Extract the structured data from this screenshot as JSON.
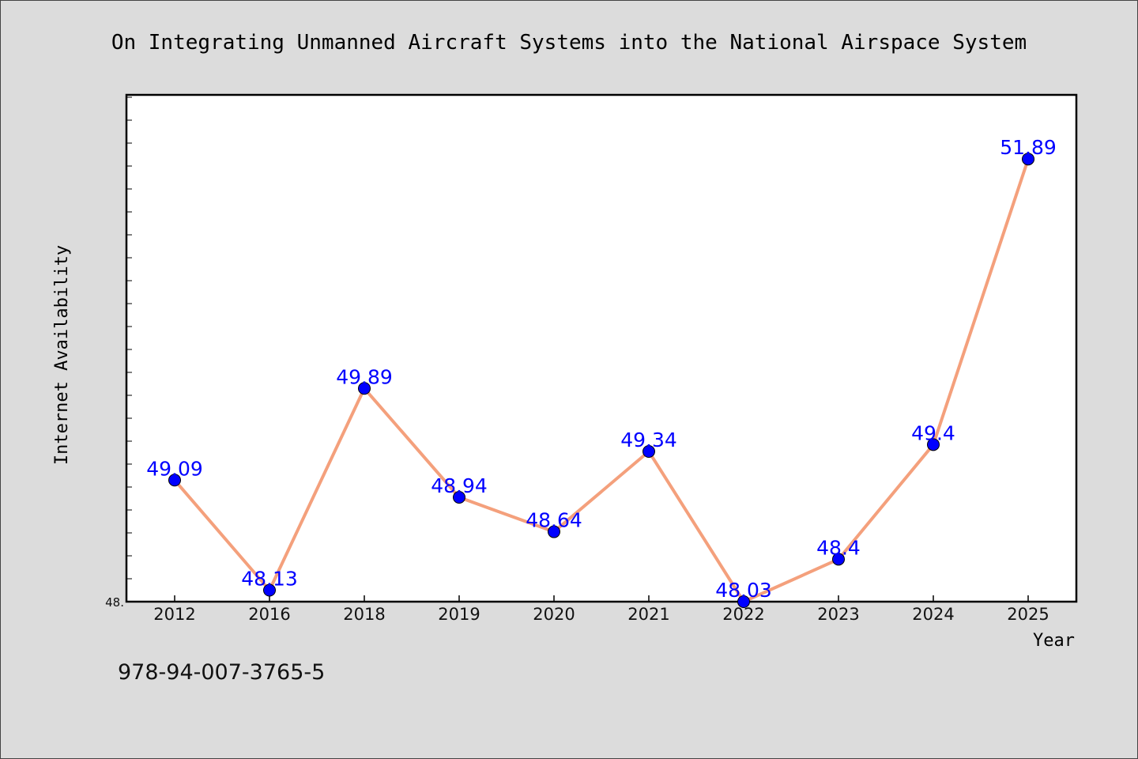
{
  "chart_data": {
    "type": "line",
    "title": "On Integrating Unmanned Aircraft Systems into the National Airspace System",
    "xlabel": "Year",
    "ylabel": "Internet Availability",
    "categories": [
      "2012",
      "2016",
      "2018",
      "2019",
      "2020",
      "2021",
      "2022",
      "2023",
      "2024",
      "2025"
    ],
    "series": [
      {
        "values": [
          49.09,
          48.13,
          49.89,
          48.94,
          48.64,
          49.34,
          48.03,
          48.4,
          49.4,
          51.89
        ]
      }
    ],
    "data_labels": [
      "49.09",
      "48.13",
      "49.89",
      "48.94",
      "48.64",
      "49.34",
      "48.03",
      "48.4",
      "49.4",
      "51.89"
    ],
    "ylim": [
      48.03,
      52.45
    ],
    "ytick_label": "48.",
    "grid": false,
    "line_color": "#f4a07c",
    "marker_color": "#0000ff",
    "label_color": "#0000ff"
  },
  "footer": {
    "isbn": "978-94-007-3765-5"
  }
}
